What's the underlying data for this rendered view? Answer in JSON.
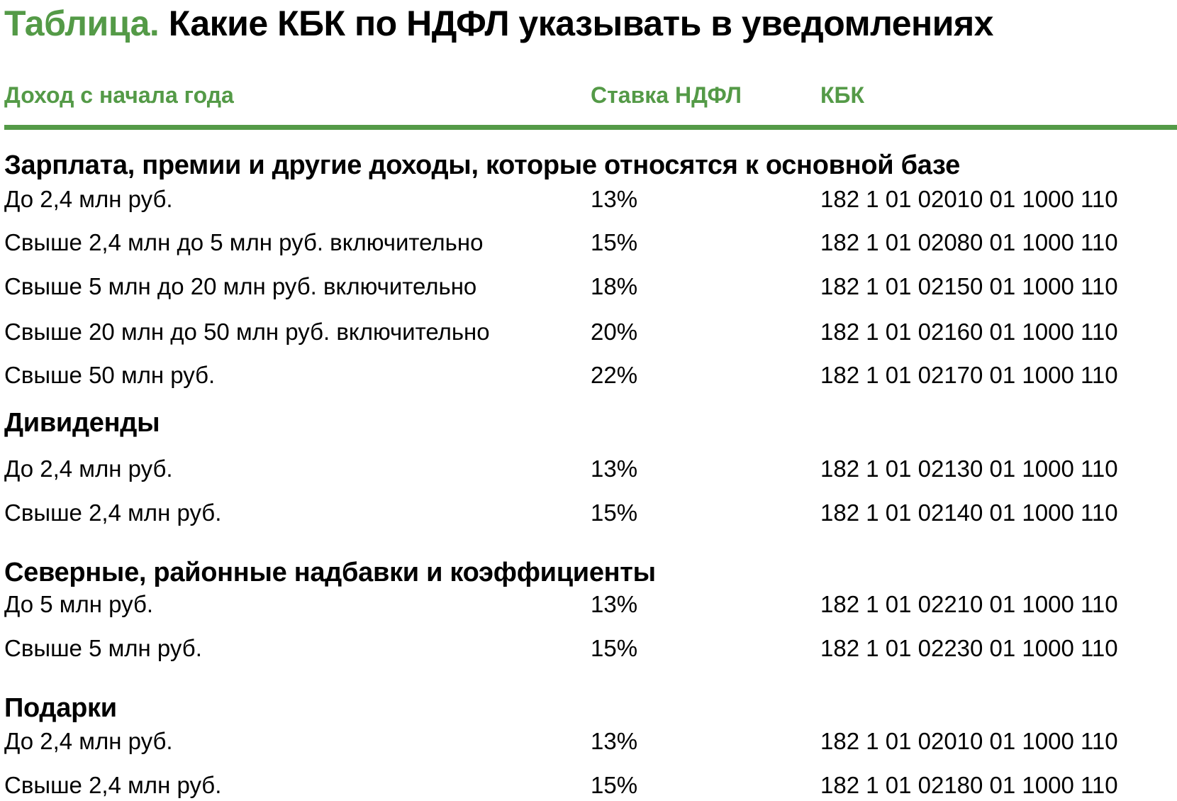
{
  "title": {
    "label": "Таблица.",
    "text": "Какие КБК по НДФЛ указывать в уведомлениях"
  },
  "colors": {
    "accent": "#549a47"
  },
  "columns": [
    "Доход с начала года",
    "Ставка НДФЛ",
    "КБК"
  ],
  "sections": [
    {
      "title": "Зарплата, премии и другие доходы, которые относятся к основной базе",
      "rows": [
        [
          "До 2,4 млн руб.",
          "13%",
          "182 1 01 02010 01 1000 110"
        ],
        [
          "Свыше 2,4 млн до 5 млн руб. включительно",
          "15%",
          "182 1 01 02080 01 1000 110"
        ],
        [
          "Свыше 5 млн до 20 млн руб. включительно",
          "18%",
          "182 1 01 02150 01 1000 110"
        ],
        [
          "Свыше 20 млн до 50 млн руб. включительно",
          "20%",
          "182 1 01 02160 01 1000 110"
        ],
        [
          "Свыше 50 млн руб.",
          "22%",
          "182 1 01 02170 01 1000 110"
        ]
      ]
    },
    {
      "title": "Дивиденды",
      "rows": [
        [
          "До 2,4 млн руб.",
          "13%",
          "182 1 01 02130 01 1000 110"
        ],
        [
          "Свыше 2,4 млн руб.",
          "15%",
          "182 1 01 02140 01 1000 110"
        ]
      ]
    },
    {
      "title": "Северные, районные надбавки и коэффициенты",
      "rows": [
        [
          "До 5 млн руб.",
          "13%",
          "182 1 01 02210 01 1000 110"
        ],
        [
          "Свыше 5 млн руб.",
          "15%",
          "182 1 01 02230 01 1000 110"
        ]
      ]
    },
    {
      "title": "Подарки",
      "rows": [
        [
          "До 2,4 млн руб.",
          "13%",
          "182 1 01 02010 01 1000 110"
        ],
        [
          "Свыше 2,4 млн руб.",
          "15%",
          "182 1 01 02180 01 1000 110"
        ]
      ]
    }
  ]
}
